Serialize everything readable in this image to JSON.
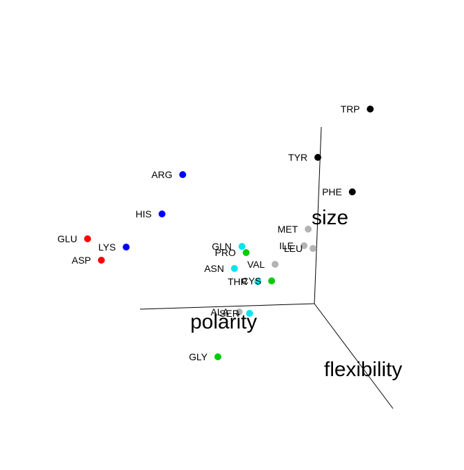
{
  "chart_data": {
    "type": "scatter",
    "projection": "3d",
    "axes": [
      {
        "name": "size",
        "label": "size"
      },
      {
        "name": "polarity",
        "label": "polarity"
      },
      {
        "name": "flexibility",
        "label": "flexibility"
      }
    ],
    "grid": false,
    "legend": "none",
    "groups": {
      "acidic": {
        "color": "#ff0000"
      },
      "basic": {
        "color": "#0000ff"
      },
      "polar": {
        "color": "#00e5ee"
      },
      "special": {
        "color": "#00cc00"
      },
      "nonpolar": {
        "color": "#b3b3b3"
      },
      "aromatic": {
        "color": "#000000"
      }
    },
    "points": [
      {
        "label": "TRP",
        "group": "aromatic"
      },
      {
        "label": "TYR",
        "group": "aromatic"
      },
      {
        "label": "PHE",
        "group": "aromatic"
      },
      {
        "label": "ARG",
        "group": "basic"
      },
      {
        "label": "HIS",
        "group": "basic"
      },
      {
        "label": "LYS",
        "group": "basic"
      },
      {
        "label": "GLU",
        "group": "acidic"
      },
      {
        "label": "ASP",
        "group": "acidic"
      },
      {
        "label": "MET",
        "group": "nonpolar"
      },
      {
        "label": "ILE",
        "group": "nonpolar"
      },
      {
        "label": "LEU",
        "group": "nonpolar"
      },
      {
        "label": "VAL",
        "group": "nonpolar"
      },
      {
        "label": "ALA",
        "group": "nonpolar"
      },
      {
        "label": "GLN",
        "group": "polar"
      },
      {
        "label": "ASN",
        "group": "polar"
      },
      {
        "label": "THR",
        "group": "polar"
      },
      {
        "label": "SER",
        "group": "polar"
      },
      {
        "label": "PRO",
        "group": "special"
      },
      {
        "label": "CYS",
        "group": "special"
      },
      {
        "label": "GLY",
        "group": "special"
      }
    ]
  }
}
